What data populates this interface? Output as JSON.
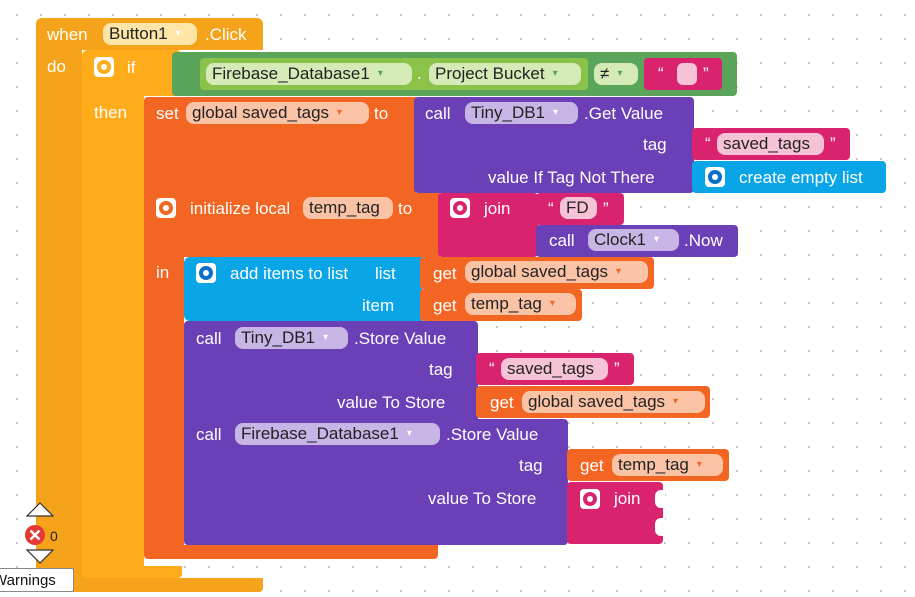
{
  "event": {
    "when": "when",
    "component": "Button1",
    "event": ".Click",
    "do": "do"
  },
  "if_block": {
    "if": "if",
    "then": "then"
  },
  "condition": {
    "component": "Firebase_Database1",
    "dot": ".",
    "property": "Project Bucket",
    "operator": "≠",
    "quote_open": "“",
    "quote_close": "”"
  },
  "set_block": {
    "set": "set",
    "variable": "global saved_tags",
    "to": "to"
  },
  "get_value": {
    "call": "call",
    "component": "Tiny_DB1",
    "method": ".Get Value",
    "tag_label": "tag",
    "value_label": "value If Tag Not There"
  },
  "text_saved_tags_1": {
    "open": "“",
    "value": "saved_tags",
    "close": "”"
  },
  "create_list": {
    "label": "create empty list"
  },
  "init_local": {
    "label": "initialize local",
    "variable": "temp_tag",
    "to": "to",
    "in": "in"
  },
  "join1": {
    "label": "join"
  },
  "text_fd": {
    "open": "“",
    "value": "FD",
    "close": "”"
  },
  "clock_call": {
    "call": "call",
    "component": "Clock1",
    "method": ".Now"
  },
  "add_items": {
    "label": "add items to list",
    "list_label": "list",
    "item_label": "item"
  },
  "get_saved_tags": {
    "get": "get",
    "variable": "global saved_tags"
  },
  "get_temp_tag": {
    "get": "get",
    "variable": "temp_tag"
  },
  "store_value_db": {
    "call": "call",
    "component": "Tiny_DB1",
    "method": ".Store Value",
    "tag_label": "tag",
    "value_label": "value To Store"
  },
  "text_saved_tags_2": {
    "open": "“",
    "value": "saved_tags",
    "close": "”"
  },
  "get_saved_tags_2": {
    "get": "get",
    "variable": "global saved_tags"
  },
  "store_value_fb": {
    "call": "call",
    "component": "Firebase_Database1",
    "method": ".Store Value",
    "tag_label": "tag",
    "value_label": "value To Store"
  },
  "get_temp_tag_2": {
    "get": "get",
    "variable": "temp_tag"
  },
  "join2": {
    "label": "join"
  },
  "warnings": {
    "error_count": "0",
    "label": "Warnings"
  },
  "icons": {
    "dropdown": "▾",
    "scroll_up": "up-triangle",
    "scroll_down": "down-triangle",
    "error": "error-x-circle",
    "gear": "mutator-gear"
  },
  "colors": {
    "event": "#f6a31c",
    "control": "#ffab1a",
    "variable": "#f26522",
    "component": "#6b3fb5",
    "text": "#d9236f",
    "list": "#0aa5e6",
    "logic": "#5ba55b"
  }
}
